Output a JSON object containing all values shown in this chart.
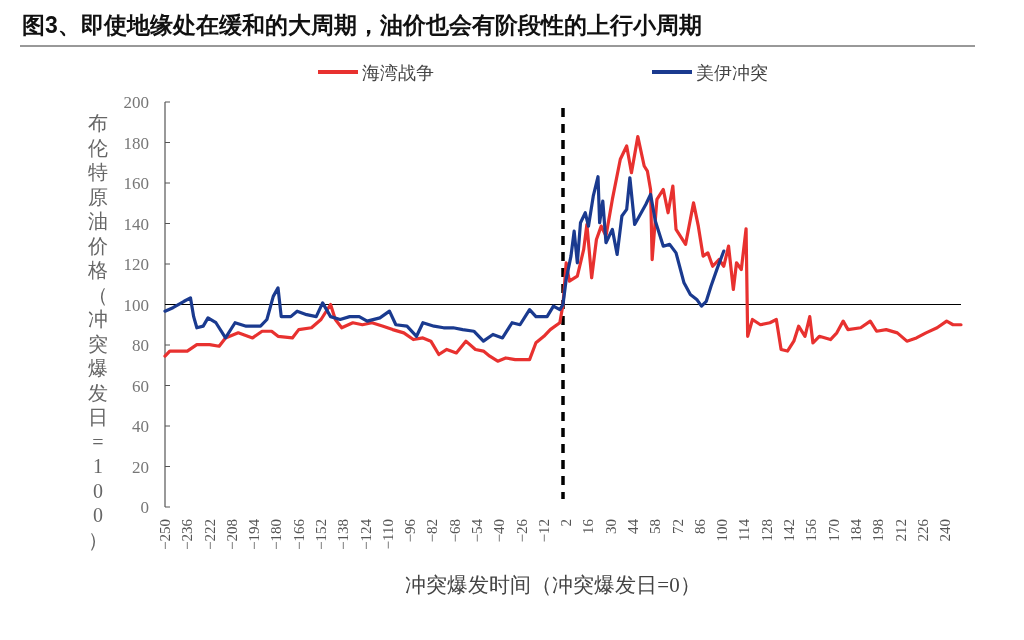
{
  "chart_data": {
    "type": "line",
    "title": "图3、即使地缘处在缓和的大周期，油价也会有阶段性的上行小周期",
    "xlabel": "冲突爆发时间（冲突爆发日=0）",
    "ylabel": "布伦特原油价格（冲突爆发日=100）",
    "xlim": [
      -250,
      250
    ],
    "ylim": [
      0,
      200
    ],
    "yticks": [
      0,
      20,
      40,
      60,
      80,
      100,
      120,
      140,
      160,
      180,
      200
    ],
    "xticks": [
      -250,
      -236,
      -222,
      -208,
      -194,
      -180,
      -166,
      -152,
      -138,
      -124,
      -110,
      -96,
      -82,
      -68,
      -54,
      -40,
      -26,
      -12,
      2,
      16,
      30,
      44,
      58,
      72,
      86,
      100,
      114,
      128,
      142,
      156,
      170,
      184,
      198,
      212,
      226,
      240
    ],
    "grid": false,
    "legend": "top",
    "marker": "none",
    "line_style": "solid",
    "ref_lines": [
      {
        "axis": "x",
        "value": 0,
        "color": "#000000",
        "line_style": "dashed"
      },
      {
        "axis": "y",
        "value": 100,
        "color": "#000000",
        "line_style": "solid"
      }
    ],
    "series": [
      {
        "name": "海湾战争",
        "color": "#e8312f",
        "x": [
          -250,
          -247,
          -236,
          -230,
          -222,
          -216,
          -212,
          -204,
          -195,
          -189,
          -183,
          -179,
          -170,
          -166,
          -158,
          -152,
          -146,
          -143,
          -139,
          -132,
          -126,
          -120,
          -113,
          -107,
          -100,
          -94,
          -88,
          -83,
          -78,
          -73,
          -67,
          -61,
          -55,
          -50,
          -46,
          -41,
          -36,
          -30,
          -25,
          -21,
          -17,
          -12,
          -8,
          -2,
          0,
          2,
          4,
          9,
          13,
          15,
          18,
          21,
          24,
          27,
          31,
          36,
          40,
          43,
          47,
          51,
          53,
          55,
          56,
          59,
          63,
          66,
          69,
          71,
          77,
          82,
          85,
          88,
          91,
          94,
          98,
          101,
          104,
          107,
          109,
          112,
          115,
          116,
          119,
          124,
          130,
          134,
          137,
          141,
          145,
          148,
          152,
          155,
          157,
          161,
          168,
          172,
          176,
          179,
          187,
          193,
          197,
          203,
          210,
          216,
          222,
          228,
          235,
          241,
          245,
          250
        ],
        "values": [
          74.5,
          77,
          77,
          80.2,
          80.2,
          79.4,
          83.5,
          86,
          83.5,
          86.8,
          86.8,
          84.3,
          83.5,
          87.6,
          88.5,
          92.6,
          100,
          92.6,
          88.5,
          91,
          90,
          91,
          89.3,
          87.6,
          86,
          82.7,
          83.5,
          81.9,
          75.3,
          77.8,
          76.1,
          81.9,
          77.8,
          77,
          74.5,
          72,
          73.6,
          72.8,
          72.8,
          72.8,
          81.1,
          84.3,
          87.6,
          91,
          100,
          120.6,
          111.5,
          114,
          127.2,
          139.5,
          113.2,
          132.1,
          138.7,
          133.8,
          151.9,
          171.7,
          178.3,
          165.1,
          182.9,
          168.4,
          165.9,
          156.8,
          122.2,
          151.9,
          156.8,
          145.3,
          158.5,
          137.1,
          129.7,
          150.2,
          138.7,
          123.9,
          125.5,
          118.9,
          122.2,
          118.9,
          128.8,
          107.4,
          120.6,
          117.3,
          137.4,
          84.3,
          92.6,
          90,
          91,
          92.6,
          77.8,
          77,
          81.9,
          89.3,
          84.3,
          94,
          81,
          84.3,
          82.7,
          86,
          91.8,
          87.6,
          88.5,
          91.8,
          86.8,
          87.6,
          86,
          81.9,
          83.5,
          86,
          88.5,
          91.8,
          90,
          90
        ]
      },
      {
        "name": "美伊冲突",
        "color": "#1a3a8f",
        "x": [
          -250,
          -245,
          -238,
          -234,
          -232,
          -230,
          -226,
          -223,
          -218,
          -212,
          -206,
          -199,
          -190,
          -186,
          -182,
          -179,
          -177,
          -171,
          -167,
          -161,
          -155,
          -151,
          -146,
          -140,
          -134,
          -128,
          -123,
          -115,
          -109,
          -105,
          -98,
          -92,
          -88,
          -81,
          -75,
          -69,
          -63,
          -56,
          -50,
          -44,
          -38,
          -32,
          -27,
          -21,
          -17,
          -10,
          -6,
          -2,
          0,
          2,
          5,
          7,
          9,
          11,
          14,
          16,
          19,
          22,
          23,
          25,
          27,
          31,
          34,
          37,
          40,
          42,
          45,
          48,
          52,
          55,
          58,
          63,
          67,
          71,
          76,
          80,
          84,
          87,
          90,
          93,
          97,
          101
        ],
        "values": [
          96.7,
          98.4,
          101.6,
          103.3,
          94,
          88.5,
          89.3,
          93.4,
          91,
          83.5,
          91,
          89.3,
          89.3,
          92.6,
          104,
          108.2,
          94,
          94,
          96.7,
          95,
          94,
          100.8,
          94,
          92.6,
          94,
          94,
          91.8,
          93.4,
          96.7,
          90,
          89.3,
          84.3,
          91,
          89.3,
          88.5,
          88.5,
          87.6,
          86.8,
          81.9,
          85.2,
          83.5,
          91,
          90,
          97.5,
          94,
          94,
          99.2,
          97.5,
          100,
          112.4,
          123.9,
          136.2,
          120.6,
          140.4,
          145.3,
          138.7,
          153.5,
          163.1,
          140.4,
          151.1,
          130.5,
          137.1,
          124.7,
          143.7,
          147,
          162.6,
          139.5,
          143.7,
          149.4,
          154.4,
          141.2,
          128.8,
          129.7,
          125.5,
          110.7,
          104.9,
          102.5,
          99.2,
          101.6,
          109.1,
          118.1,
          126.4
        ]
      }
    ]
  }
}
